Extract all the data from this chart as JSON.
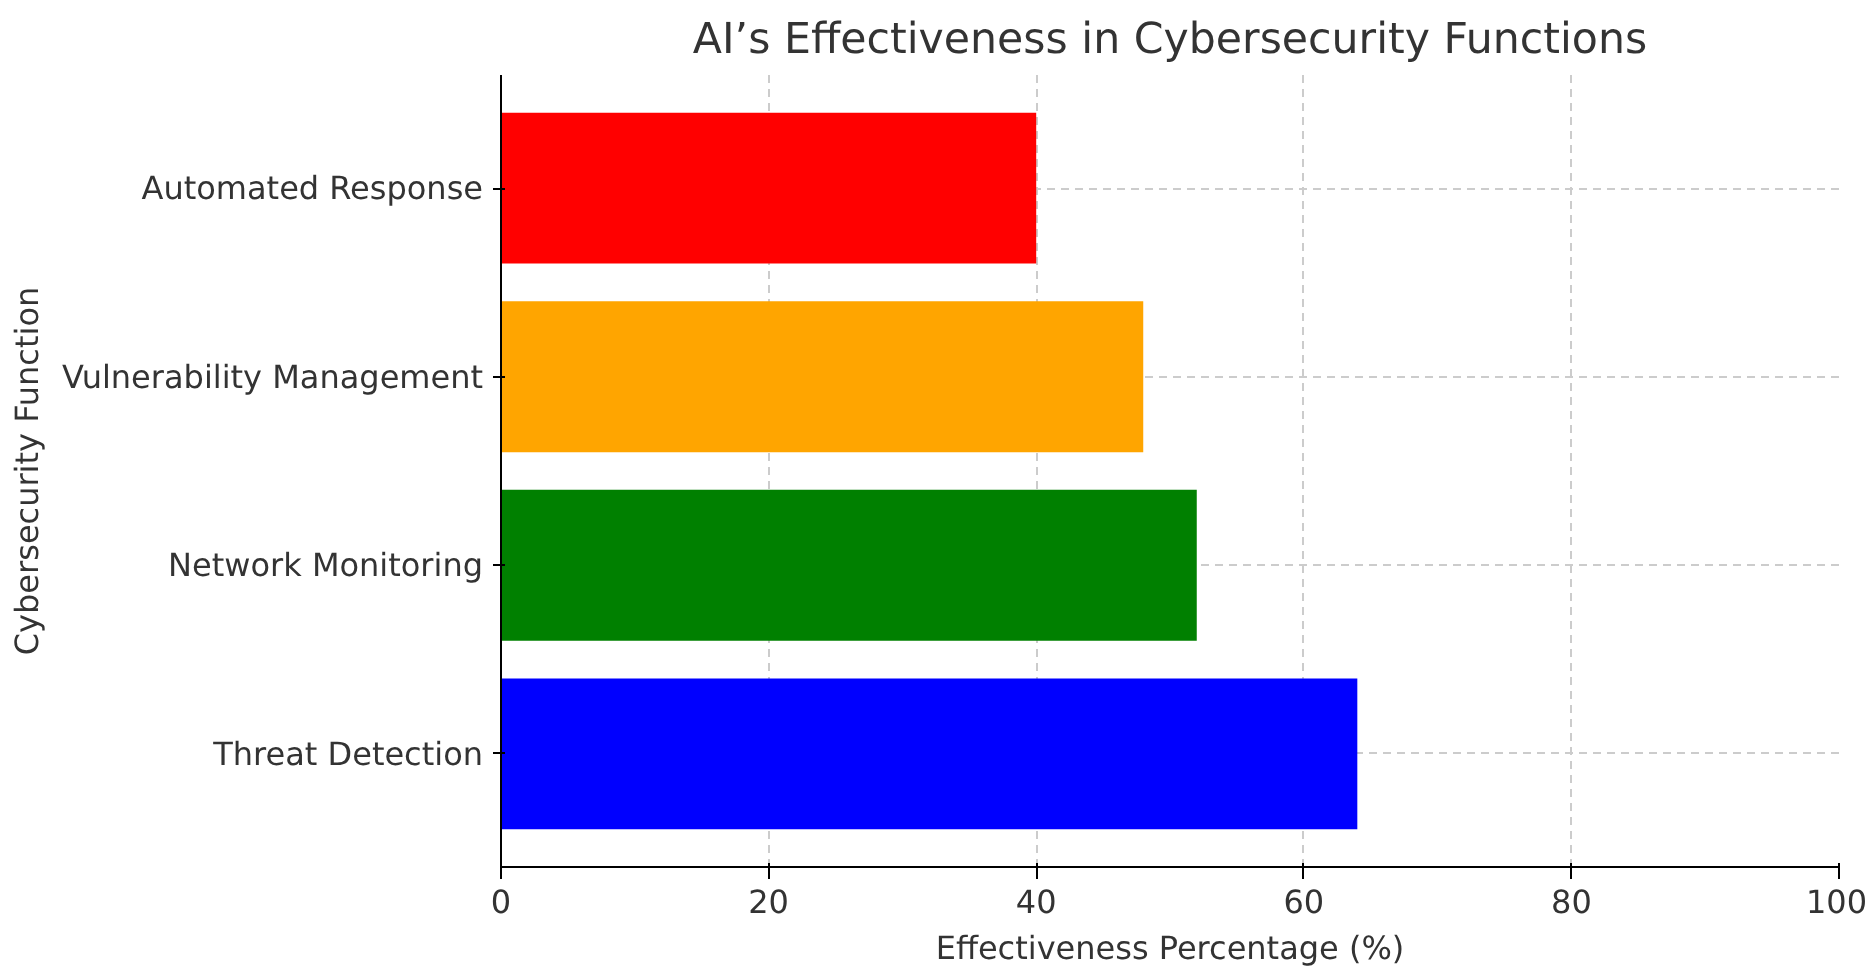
{
  "chart_data": {
    "type": "bar",
    "orientation": "horizontal",
    "title": "AI’s Effectiveness in Cybersecurity Functions",
    "xlabel": "Effectiveness Percentage (%)",
    "ylabel": "Cybersecurity Function",
    "categories": [
      "Automated Response",
      "Vulnerability Management",
      "Network Monitoring",
      "Threat Detection"
    ],
    "values": [
      40,
      48,
      52,
      64
    ],
    "colors": [
      "#ff0000",
      "#ffa500",
      "#008000",
      "#0000ff"
    ],
    "xlim": [
      0,
      100
    ],
    "xticks": [
      0,
      20,
      40,
      60,
      80,
      100
    ],
    "grid": true
  }
}
